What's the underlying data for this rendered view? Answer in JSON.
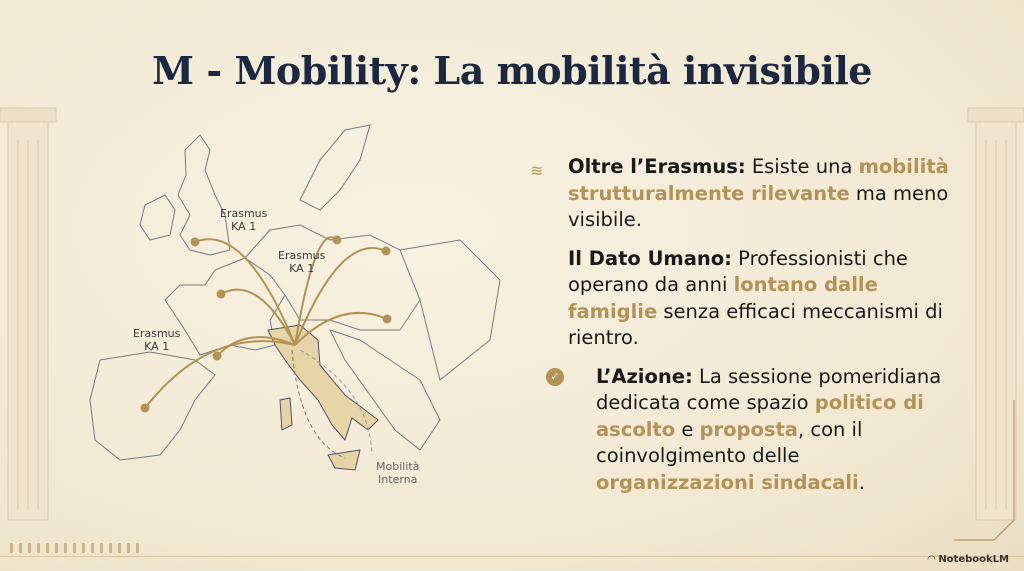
{
  "title": "M - Mobility: La mobilità invisibile",
  "map": {
    "labels": [
      {
        "line1": "Erasmus",
        "line2": "KA 1"
      },
      {
        "line1": "Erasmus",
        "line2": "KA 1"
      },
      {
        "line1": "Erasmus",
        "line2": "KA 1"
      }
    ],
    "internal_label_line1": "Mobilità",
    "internal_label_line2": "Interna"
  },
  "bullets": [
    {
      "icon": "wave-ornament-icon",
      "head": "Oltre l’Erasmus:",
      "parts": [
        " Esiste una ",
        "mobilità strutturalmente rilevante",
        " ma meno visibile."
      ]
    },
    {
      "icon": "",
      "head": "Il Dato Umano:",
      "parts": [
        " Professionisti che operano da anni ",
        "lontano dalle famiglie",
        " senza efficaci meccanismi di rientro."
      ]
    },
    {
      "icon": "check-badge-icon",
      "head": "L’Azione:",
      "parts": [
        " La sessione pomeridiana dedicata come spazio ",
        "politico di ascolto",
        " e ",
        "proposta",
        ", con il coinvolgimento delle ",
        "organizzazioni sindacali",
        "."
      ]
    }
  ],
  "brand": "NotebookLM",
  "colors": {
    "accent": "#b39355",
    "title": "#1b2840",
    "background": "#f4ecd9"
  }
}
